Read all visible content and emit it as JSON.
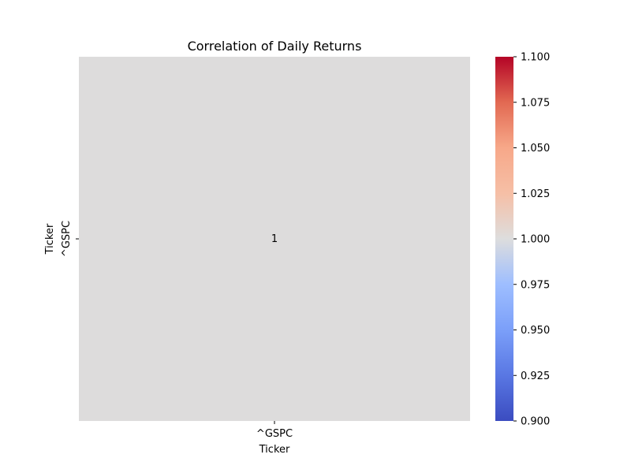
{
  "chart_data": {
    "type": "heatmap",
    "title": "Correlation of Daily Returns",
    "xlabel": "Ticker",
    "ylabel": "Ticker",
    "x_categories": [
      "^GSPC"
    ],
    "y_categories": [
      "^GSPC"
    ],
    "values": [
      [
        1
      ]
    ],
    "annotations": [
      [
        "1"
      ]
    ],
    "colormap": "coolwarm",
    "cell_color": "#dddcdc",
    "colorbar": {
      "vmin": 0.9,
      "vmax": 1.1,
      "ticks": [
        0.9,
        0.925,
        0.95,
        0.975,
        1.0,
        1.025,
        1.05,
        1.075,
        1.1
      ],
      "tick_labels": [
        "0.900",
        "0.925",
        "0.950",
        "0.975",
        "1.000",
        "1.025",
        "1.050",
        "1.075",
        "1.100"
      ],
      "colors": {
        "low": "#3b4cc0",
        "mid": "#dddddd",
        "high": "#b40426"
      }
    },
    "grid": false,
    "legend": "colorbar-right"
  }
}
